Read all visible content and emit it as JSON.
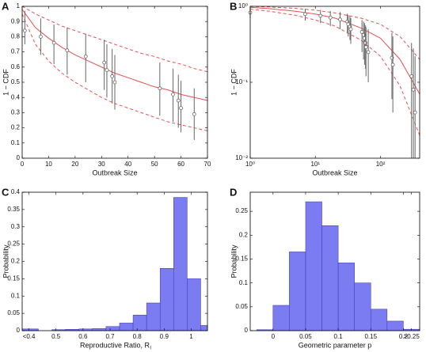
{
  "chart_data": [
    {
      "type": "errorbar",
      "panel": "A",
      "xlabel": "Outbreak Size",
      "ylabel": "1 − CDF",
      "xlim": [
        0,
        70
      ],
      "ylim": [
        0,
        1
      ],
      "xticks": [
        0,
        10,
        20,
        30,
        40,
        50,
        60,
        70
      ],
      "yticks": [
        0,
        0.1,
        0.2,
        0.3,
        0.4,
        0.5,
        0.6,
        0.7,
        0.8,
        0.9,
        1
      ],
      "marker_color": "#666666",
      "x": [
        1,
        7,
        12,
        17,
        24,
        31,
        32,
        34,
        35,
        52,
        57,
        59,
        60,
        65
      ],
      "values": [
        0.84,
        0.8,
        0.76,
        0.71,
        0.67,
        0.63,
        0.58,
        0.54,
        0.5,
        0.46,
        0.42,
        0.38,
        0.33,
        0.29
      ],
      "low": [
        0.75,
        0.68,
        0.62,
        0.55,
        0.5,
        0.45,
        0.4,
        0.36,
        0.32,
        0.28,
        0.24,
        0.2,
        0.17,
        0.12
      ],
      "high": [
        0.97,
        0.92,
        0.88,
        0.86,
        0.82,
        0.78,
        0.75,
        0.72,
        0.68,
        0.63,
        0.59,
        0.55,
        0.51,
        0.46
      ],
      "lines": [
        {
          "color": "#e85050",
          "dashed": false,
          "x": [
            0,
            5,
            10,
            15,
            20,
            25,
            30,
            35,
            40,
            45,
            50,
            55,
            60,
            65,
            70
          ],
          "values": [
            0.98,
            0.86,
            0.79,
            0.73,
            0.68,
            0.64,
            0.6,
            0.56,
            0.53,
            0.5,
            0.47,
            0.45,
            0.42,
            0.4,
            0.38
          ]
        },
        {
          "color": "#e85050",
          "dashed": true,
          "x": [
            0,
            5,
            10,
            15,
            20,
            25,
            30,
            35,
            40,
            45,
            50,
            55,
            60,
            65,
            70
          ],
          "values": [
            1,
            0.95,
            0.91,
            0.87,
            0.84,
            0.81,
            0.78,
            0.75,
            0.72,
            0.69,
            0.67,
            0.64,
            0.62,
            0.59,
            0.57
          ]
        },
        {
          "color": "#e85050",
          "dashed": true,
          "x": [
            0,
            5,
            10,
            15,
            20,
            25,
            30,
            35,
            40,
            45,
            50,
            55,
            60,
            65,
            70
          ],
          "values": [
            0.95,
            0.75,
            0.64,
            0.56,
            0.5,
            0.45,
            0.4,
            0.36,
            0.33,
            0.3,
            0.27,
            0.24,
            0.22,
            0.2,
            0.18
          ]
        }
      ]
    },
    {
      "type": "errorbar",
      "panel": "B",
      "xlabel": "Outbreak Size",
      "ylabel": "1 − CDF",
      "xscale": "log",
      "yscale": "log",
      "xlim": [
        1,
        400
      ],
      "ylim": [
        0.01,
        1
      ],
      "xticks": [
        {
          "value": 1,
          "label": "10⁰"
        },
        {
          "value": 10,
          "label": "10¹"
        },
        {
          "value": 100,
          "label": "10²"
        }
      ],
      "yticks": [
        {
          "value": 0.01,
          "label": "10⁻²"
        },
        {
          "value": 0.1,
          "label": "10⁻¹"
        },
        {
          "value": 1,
          "label": "10⁰"
        }
      ],
      "marker_color": "#666666",
      "x": [
        1,
        7,
        12,
        17,
        24,
        31,
        32,
        34,
        35,
        52,
        55,
        57,
        59,
        60,
        65,
        150,
        155,
        300,
        320,
        340
      ],
      "values": [
        0.83,
        0.79,
        0.75,
        0.71,
        0.67,
        0.63,
        0.58,
        0.54,
        0.5,
        0.46,
        0.42,
        0.38,
        0.33,
        0.29,
        0.25,
        0.21,
        0.17,
        0.12,
        0.08,
        0.04
      ],
      "low": [
        0.7,
        0.65,
        0.6,
        0.55,
        0.5,
        0.45,
        0.4,
        0.36,
        0.32,
        0.25,
        0.2,
        0.17,
        0.15,
        0.12,
        0.1,
        0.06,
        0.04,
        0.01,
        0.01,
        0.01
      ],
      "high": [
        0.95,
        0.93,
        0.9,
        0.87,
        0.84,
        0.8,
        0.77,
        0.74,
        0.7,
        0.66,
        0.63,
        0.6,
        0.56,
        0.53,
        0.5,
        0.45,
        0.4,
        0.33,
        0.28,
        0.22
      ],
      "lines": [
        {
          "color": "#e85050",
          "dashed": false,
          "x": [
            1,
            2,
            5,
            10,
            20,
            50,
            100,
            200,
            400
          ],
          "values": [
            0.97,
            0.93,
            0.86,
            0.79,
            0.7,
            0.52,
            0.38,
            0.2,
            0.07
          ]
        },
        {
          "color": "#e85050",
          "dashed": true,
          "x": [
            1,
            2,
            5,
            10,
            20,
            50,
            100,
            200,
            400
          ],
          "values": [
            1,
            0.98,
            0.94,
            0.89,
            0.82,
            0.7,
            0.58,
            0.4,
            0.2
          ]
        },
        {
          "color": "#e85050",
          "dashed": true,
          "x": [
            1,
            2,
            5,
            10,
            20,
            50,
            100,
            200,
            400
          ],
          "values": [
            0.92,
            0.86,
            0.76,
            0.66,
            0.55,
            0.36,
            0.22,
            0.09,
            0.02
          ]
        }
      ]
    },
    {
      "type": "histogram",
      "panel": "C",
      "xlabel": "Reproductive Ratio, R",
      "xlabel_subscript": "l",
      "ylabel": "Probability",
      "xlim": [
        0.375,
        1.06
      ],
      "ylim": [
        0,
        0.4
      ],
      "xticks": [
        {
          "value": 0.4,
          "label": "<0.4"
        },
        0.5,
        0.6,
        0.7,
        0.8,
        0.9,
        1
      ],
      "yticks": [
        0,
        0.05,
        0.1,
        0.15,
        0.2,
        0.25,
        0.3,
        0.35,
        0.4
      ],
      "color": "#7b7bf2",
      "edgecolor": "#3a3aa8",
      "bins": [
        0.375,
        0.435,
        0.485,
        0.535,
        0.585,
        0.635,
        0.685,
        0.735,
        0.785,
        0.835,
        0.885,
        0.935,
        0.985,
        1.035,
        1.06
      ],
      "values": [
        0.005,
        0,
        0.003,
        0.004,
        0.005,
        0.006,
        0.012,
        0.022,
        0.045,
        0.08,
        0.18,
        0.385,
        0.15,
        0.015
      ]
    },
    {
      "type": "histogram",
      "panel": "D",
      "xlabel": "Geometric parameter p",
      "ylabel": "Probability",
      "xlim": [
        -0.035,
        0.225
      ],
      "ylim": [
        0,
        0.29
      ],
      "xticks": [
        0,
        0.05,
        0.1,
        0.15,
        0.2,
        {
          "value": 0.2125,
          "label": ">0.25"
        }
      ],
      "yticks": [
        0,
        0.05,
        0.1,
        0.15,
        0.2,
        0.25
      ],
      "color": "#7b7bf2",
      "edgecolor": "#3a3aa8",
      "bins": [
        -0.025,
        0,
        0.025,
        0.05,
        0.075,
        0.1,
        0.125,
        0.15,
        0.175,
        0.2,
        0.225
      ],
      "values": [
        0.002,
        0.053,
        0.165,
        0.27,
        0.22,
        0.142,
        0.1,
        0.045,
        0.02,
        0.003
      ]
    }
  ]
}
